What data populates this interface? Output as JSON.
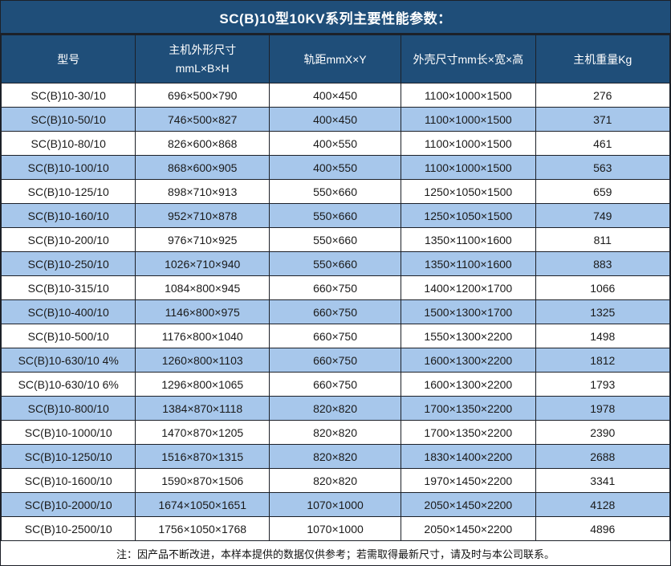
{
  "title": "SC(B)10型10KV系列主要性能参数：",
  "note": "注：因产品不断改进，本样本提供的数据仅供参考；若需取得最新尺寸，请及时与本公司联系。",
  "colors": {
    "header_bg": "#1F4E79",
    "header_text": "#ffffff",
    "row_alt_bg": "#A7C7EB",
    "border_color": "#1c2028"
  },
  "table": {
    "headers": [
      "型号",
      "主机外形尺寸\nmmL×B×H",
      "轨距mmX×Y",
      "外壳尺寸mm长×宽×高",
      "主机重量Kg"
    ],
    "rows": [
      [
        "SC(B)10-30/10",
        "696×500×790",
        "400×450",
        "1100×1000×1500",
        "276"
      ],
      [
        "SC(B)10-50/10",
        "746×500×827",
        "400×450",
        "1100×1000×1500",
        "371"
      ],
      [
        "SC(B)10-80/10",
        "826×600×868",
        "400×550",
        "1100×1000×1500",
        "461"
      ],
      [
        "SC(B)10-100/10",
        "868×600×905",
        "400×550",
        "1100×1000×1500",
        "563"
      ],
      [
        "SC(B)10-125/10",
        "898×710×913",
        "550×660",
        "1250×1050×1500",
        "659"
      ],
      [
        "SC(B)10-160/10",
        "952×710×878",
        "550×660",
        "1250×1050×1500",
        "749"
      ],
      [
        "SC(B)10-200/10",
        "976×710×925",
        "550×660",
        "1350×1100×1600",
        "811"
      ],
      [
        "SC(B)10-250/10",
        "1026×710×940",
        "550×660",
        "1350×1100×1600",
        "883"
      ],
      [
        "SC(B)10-315/10",
        "1084×800×945",
        "660×750",
        "1400×1200×1700",
        "1066"
      ],
      [
        "SC(B)10-400/10",
        "1146×800×975",
        "660×750",
        "1500×1300×1700",
        "1325"
      ],
      [
        "SC(B)10-500/10",
        "1176×800×1040",
        "660×750",
        "1550×1300×2200",
        "1498"
      ],
      [
        "SC(B)10-630/10 4%",
        "1260×800×1103",
        "660×750",
        "1600×1300×2200",
        "1812"
      ],
      [
        "SC(B)10-630/10 6%",
        "1296×800×1065",
        "660×750",
        "1600×1300×2200",
        "1793"
      ],
      [
        "SC(B)10-800/10",
        "1384×870×1118",
        "820×820",
        "1700×1350×2200",
        "1978"
      ],
      [
        "SC(B)10-1000/10",
        "1470×870×1205",
        "820×820",
        "1700×1350×2200",
        "2390"
      ],
      [
        "SC(B)10-1250/10",
        "1516×870×1315",
        "820×820",
        "1830×1400×2200",
        "2688"
      ],
      [
        "SC(B)10-1600/10",
        "1590×870×1506",
        "820×820",
        "1970×1450×2200",
        "3341"
      ],
      [
        "SC(B)10-2000/10",
        "1674×1050×1651",
        "1070×1000",
        "2050×1450×2200",
        "4128"
      ],
      [
        "SC(B)10-2500/10",
        "1756×1050×1768",
        "1070×1000",
        "2050×1450×2200",
        "4896"
      ]
    ]
  }
}
